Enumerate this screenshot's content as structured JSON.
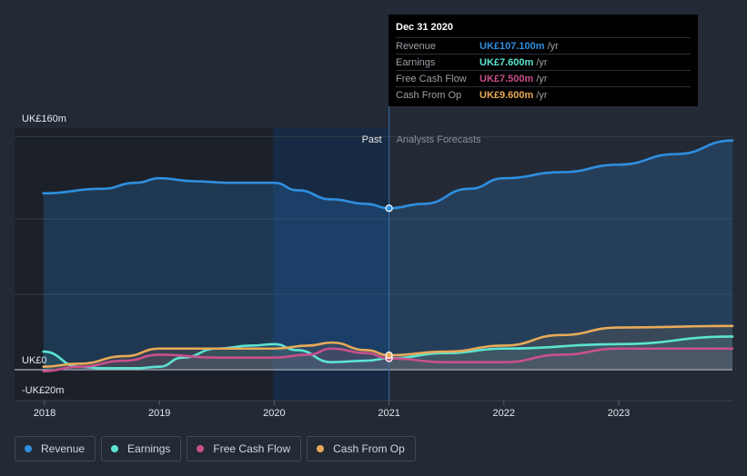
{
  "chart_data": {
    "type": "line",
    "y_tick_labels": [
      "UK£160m",
      "UK£0",
      "-UK£20m"
    ],
    "ylim": [
      -20,
      160
    ],
    "x_tick_labels": [
      "2018",
      "2019",
      "2020",
      "2021",
      "2022",
      "2023"
    ],
    "xlim": [
      2018,
      2024
    ],
    "past_label": "Past",
    "forecast_label": "Analysts Forecasts",
    "divider_x": 2021.0,
    "series": [
      {
        "name": "Revenue",
        "color": "#2f8fdf",
        "points": [
          [
            2017.99,
            117
          ],
          [
            2018.5,
            120
          ],
          [
            2018.8,
            124
          ],
          [
            2019.0,
            127
          ],
          [
            2019.3,
            125
          ],
          [
            2019.6,
            124
          ],
          [
            2020.0,
            124
          ],
          [
            2020.2,
            119
          ],
          [
            2020.5,
            113
          ],
          [
            2020.8,
            110
          ],
          [
            2021.0,
            107.1
          ],
          [
            2021.3,
            110
          ],
          [
            2021.7,
            120
          ],
          [
            2022.0,
            127
          ],
          [
            2022.5,
            131
          ],
          [
            2023.0,
            136
          ],
          [
            2023.5,
            143
          ],
          [
            2024.0,
            152
          ]
        ]
      },
      {
        "name": "Earnings",
        "color": "#5ce3d2",
        "points": [
          [
            2017.99,
            12
          ],
          [
            2018.3,
            2
          ],
          [
            2018.5,
            1
          ],
          [
            2018.8,
            1
          ],
          [
            2019.0,
            2
          ],
          [
            2019.2,
            8
          ],
          [
            2019.5,
            14
          ],
          [
            2019.8,
            16
          ],
          [
            2020.0,
            17
          ],
          [
            2020.2,
            13
          ],
          [
            2020.5,
            5
          ],
          [
            2020.8,
            6
          ],
          [
            2021.0,
            7.6
          ],
          [
            2021.5,
            11
          ],
          [
            2022.0,
            14
          ],
          [
            2023.0,
            17
          ],
          [
            2024.0,
            22
          ]
        ]
      },
      {
        "name": "Free Cash Flow",
        "color": "#c9508d",
        "points": [
          [
            2017.99,
            -1
          ],
          [
            2018.3,
            2
          ],
          [
            2018.7,
            6
          ],
          [
            2019.0,
            10
          ],
          [
            2019.5,
            8
          ],
          [
            2020.0,
            8
          ],
          [
            2020.3,
            10
          ],
          [
            2020.5,
            14
          ],
          [
            2020.8,
            11
          ],
          [
            2021.0,
            7.5
          ],
          [
            2021.5,
            5
          ],
          [
            2022.0,
            5
          ],
          [
            2022.5,
            10
          ],
          [
            2023.0,
            14
          ],
          [
            2024.0,
            14
          ]
        ]
      },
      {
        "name": "Cash From Op",
        "color": "#e8aa58",
        "points": [
          [
            2017.99,
            2
          ],
          [
            2018.3,
            4
          ],
          [
            2018.7,
            9
          ],
          [
            2019.0,
            14
          ],
          [
            2019.5,
            14
          ],
          [
            2020.0,
            14
          ],
          [
            2020.3,
            16
          ],
          [
            2020.5,
            18
          ],
          [
            2020.8,
            13
          ],
          [
            2021.0,
            9.6
          ],
          [
            2021.5,
            12
          ],
          [
            2022.0,
            16
          ],
          [
            2022.5,
            23
          ],
          [
            2023.0,
            28
          ],
          [
            2024.0,
            29
          ]
        ]
      }
    ]
  },
  "tooltip": {
    "date": "Dec 31 2020",
    "rows": [
      {
        "label": "Revenue",
        "value": "UK£107.100m",
        "unit": "/yr",
        "color": "#2f8fdf"
      },
      {
        "label": "Earnings",
        "value": "UK£7.600m",
        "unit": "/yr",
        "color": "#5ce3d2"
      },
      {
        "label": "Free Cash Flow",
        "value": "UK£7.500m",
        "unit": "/yr",
        "color": "#c9508d"
      },
      {
        "label": "Cash From Op",
        "value": "UK£9.600m",
        "unit": "/yr",
        "color": "#e8aa58"
      }
    ]
  },
  "legend": [
    {
      "label": "Revenue",
      "color": "#2f8fdf"
    },
    {
      "label": "Earnings",
      "color": "#5ce3d2"
    },
    {
      "label": "Free Cash Flow",
      "color": "#c9508d"
    },
    {
      "label": "Cash From Op",
      "color": "#e8aa58"
    }
  ]
}
